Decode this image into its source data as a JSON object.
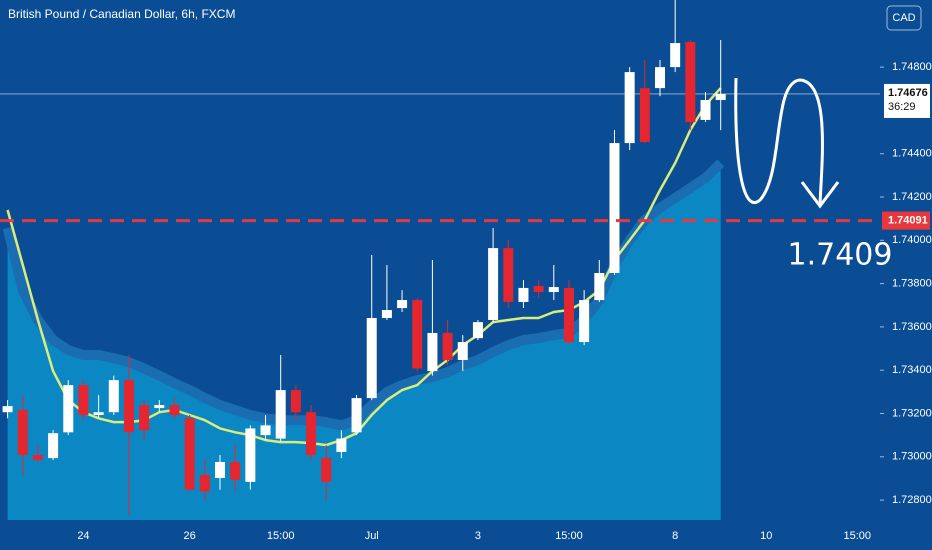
{
  "chart_data": {
    "type": "candlestick",
    "title": "British Pound / Canadian Dollar, 6h, FXCM",
    "currency": "CAD",
    "categories": [
      null,
      null,
      null,
      null,
      null,
      "24",
      null,
      null,
      null,
      null,
      null,
      null,
      "26",
      null,
      null,
      null,
      null,
      null,
      "15:00",
      null,
      null,
      null,
      null,
      null,
      "Jul",
      null,
      null,
      null,
      null,
      null,
      null,
      "3",
      null,
      null,
      null,
      null,
      null,
      "15:00",
      null,
      null,
      null,
      null,
      null,
      null,
      "8",
      null,
      null,
      null,
      null,
      null,
      "10",
      null,
      null,
      null,
      null,
      null,
      "15:00",
      null
    ],
    "open": [
      1.73206,
      1.73216,
      1.73008,
      1.72994,
      1.73113,
      1.73331,
      1.73193,
      1.73206,
      1.73354,
      1.73239,
      1.73225,
      1.73239,
      1.73178,
      1.72916,
      1.72902,
      1.72976,
      1.72884,
      1.731,
      1.73084,
      1.73308,
      1.73206,
      1.72994,
      1.73022,
      1.73113,
      1.73271,
      1.73641,
      1.73687,
      1.73724,
      1.73396,
      1.73572,
      1.73447,
      1.73548,
      1.73632,
      1.73964,
      1.73715,
      1.73789,
      1.73761,
      1.7378,
      1.7353,
      1.73724,
      1.73849,
      1.74449,
      1.74703,
      1.74703,
      1.748,
      1.74916,
      1.74556,
      1.74648,
      null,
      null,
      null,
      null,
      null,
      null,
      null,
      null,
      null,
      null
    ],
    "high": [
      1.73262,
      1.73285,
      1.73054,
      1.73123,
      1.73354,
      1.73354,
      1.73285,
      1.73375,
      1.7347,
      1.73262,
      1.73262,
      1.73271,
      1.73193,
      1.72985,
      1.73008,
      1.73054,
      1.73145,
      1.73193,
      1.7347,
      1.73331,
      1.73239,
      1.73054,
      1.73123,
      1.73285,
      1.73932,
      1.73886,
      1.7377,
      1.73733,
      1.73909,
      1.73632,
      1.73562,
      1.73632,
      1.74057,
      1.74001,
      1.73816,
      1.73816,
      1.73886,
      1.73816,
      1.7377,
      1.73909,
      1.74509,
      1.748,
      1.74833,
      1.74833,
      1.7511,
      1.74925,
      1.74685,
      1.74925,
      null,
      null,
      null,
      null,
      null,
      null,
      null,
      null,
      null,
      null
    ],
    "low": [
      1.73178,
      1.72916,
      1.72976,
      1.72985,
      1.731,
      1.73169,
      1.73178,
      1.73193,
      1.72731,
      1.73077,
      1.73206,
      1.73178,
      1.7284,
      1.728,
      1.72848,
      1.7284,
      1.72848,
      1.73077,
      1.73068,
      1.73169,
      1.72985,
      1.728,
      1.72994,
      1.731,
      1.73262,
      1.73632,
      1.73669,
      1.73396,
      1.73375,
      1.73423,
      1.73396,
      1.73539,
      1.73622,
      1.73687,
      1.73687,
      1.73733,
      1.73724,
      1.73516,
      1.73516,
      1.73715,
      1.7384,
      1.74417,
      1.74449,
      1.74666,
      1.74777,
      1.74509,
      1.74546,
      1.74509,
      null,
      null,
      null,
      null,
      null,
      null,
      null,
      null,
      null,
      null
    ],
    "close": [
      1.73234,
      1.73008,
      1.72985,
      1.73109,
      1.73331,
      1.73193,
      1.73206,
      1.73354,
      1.73113,
      1.73123,
      1.73239,
      1.73193,
      1.72848,
      1.7284,
      1.72976,
      1.72894,
      1.73131,
      1.73145,
      1.73308,
      1.73206,
      1.73008,
      1.72884,
      1.73084,
      1.73271,
      1.73641,
      1.73678,
      1.73724,
      1.73408,
      1.73572,
      1.73447,
      1.7353,
      1.73622,
      1.73964,
      1.73715,
      1.7378,
      1.73761,
      1.73784,
      1.7353,
      1.73724,
      1.73849,
      1.74449,
      1.74777,
      1.74454,
      1.748,
      1.74911,
      1.74546,
      1.74648,
      1.74676,
      null,
      null,
      null,
      null,
      null,
      null,
      null,
      null,
      null,
      null
    ],
    "up_color": "#ffffff",
    "down_color": "#e3262f",
    "ma": {
      "color": "#d9ec7c",
      "values": [
        1.7414,
        1.73886,
        1.73632,
        1.73396,
        1.73262,
        1.73206,
        1.73178,
        1.7316,
        1.7316,
        1.73169,
        1.73206,
        1.73216,
        1.73193,
        1.73169,
        1.73131,
        1.73113,
        1.731,
        1.73077,
        1.73068,
        1.73068,
        1.73063,
        1.73054,
        1.73077,
        1.73109,
        1.73193,
        1.73262,
        1.73308,
        1.73331,
        1.73396,
        1.73447,
        1.73516,
        1.73562,
        1.73622,
        1.73632,
        1.73641,
        1.73641,
        1.73669,
        1.73678,
        1.73715,
        1.7377,
        1.73909,
        1.74001,
        1.74094,
        1.74232,
        1.74357,
        1.74509,
        1.74625,
        1.74703,
        null,
        null,
        null,
        null,
        null,
        null,
        null,
        null,
        null,
        null
      ]
    },
    "band": {
      "color": "#0b88c3",
      "edge_color": "#1b6db2",
      "values": [
        1.74057,
        1.7377,
        1.73632,
        1.73539,
        1.73493,
        1.7347,
        1.7347,
        1.73456,
        1.73437,
        1.73408,
        1.73375,
        1.7334,
        1.73308,
        1.73271,
        1.73239,
        1.73216,
        1.73193,
        1.73178,
        1.73169,
        1.73169,
        1.73169,
        1.7316,
        1.73145,
        1.73169,
        1.73239,
        1.73299,
        1.73331,
        1.73354,
        1.73368,
        1.73391,
        1.73423,
        1.73447,
        1.73484,
        1.73516,
        1.73539,
        1.73548,
        1.73562,
        1.73572,
        1.73632,
        1.73724,
        1.73886,
        1.74001,
        1.74094,
        1.74149,
        1.74195,
        1.74241,
        1.74288,
        1.74357,
        null,
        null,
        null,
        null,
        null,
        null,
        null,
        null,
        null,
        null
      ]
    },
    "ylim": [
      1.72708,
      1.7511
    ],
    "yticks": [
      {
        "value": 1.748,
        "label": "1.74800"
      },
      {
        "value": 1.744,
        "label": "1.74400"
      },
      {
        "value": 1.742,
        "label": "1.74200"
      },
      {
        "value": 1.74,
        "label": "1.74000"
      },
      {
        "value": 1.738,
        "label": "1.73800"
      },
      {
        "value": 1.736,
        "label": "1.73600"
      },
      {
        "value": 1.734,
        "label": "1.73400"
      },
      {
        "value": 1.732,
        "label": "1.73200"
      },
      {
        "value": 1.73,
        "label": "1.73000"
      },
      {
        "value": 1.728,
        "label": "1.72800"
      }
    ],
    "last_price": 1.74676,
    "countdown": "36:29",
    "level": {
      "value": 1.74091,
      "color": "#e8383d"
    },
    "annotation": "1.7409"
  }
}
